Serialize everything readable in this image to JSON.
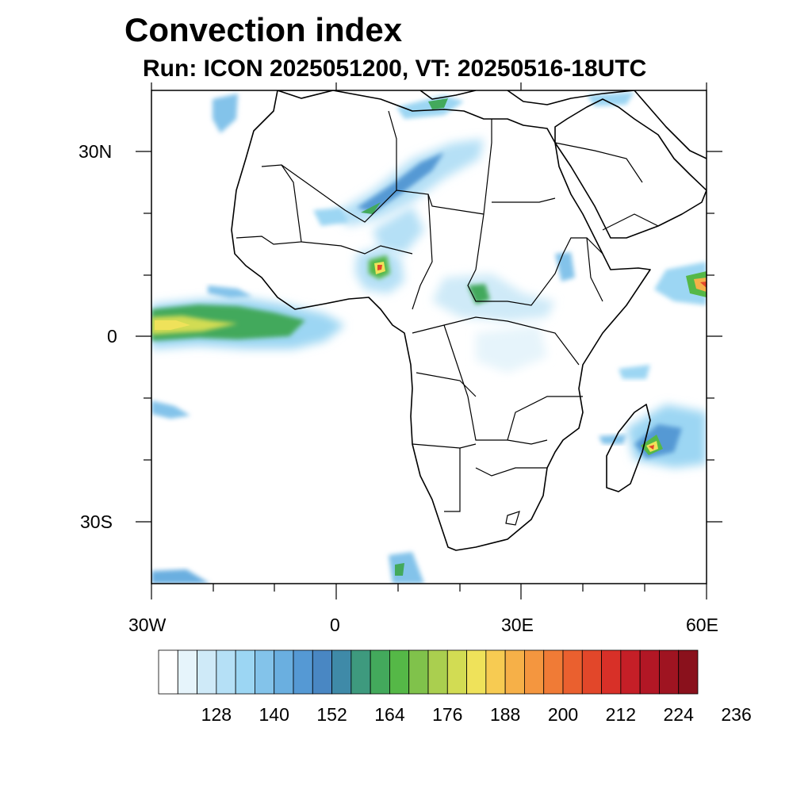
{
  "title": "Convection index",
  "subtitle": "Run: ICON 2025051200,  VT: 20250516-18UTC",
  "map": {
    "lon_range": [
      -30,
      60
    ],
    "lat_range": [
      -40,
      40
    ],
    "lat_tick_labels": [
      "30N",
      "0",
      "30S"
    ],
    "lon_tick_labels": [
      "30W",
      "0",
      "30E",
      "60E"
    ],
    "colors": {
      "land_outline": "#000000",
      "background": "#ffffff"
    },
    "hotspots": [
      {
        "region": "equatorial Atlantic band",
        "peak": "yellow"
      },
      {
        "region": "Nigeria / Cameroon",
        "peak": "red"
      },
      {
        "region": "Madagascar east coast",
        "peak": "red"
      },
      {
        "region": "Arabian Sea near Horn of Africa",
        "peak": "orange"
      },
      {
        "region": "Sahel / southern Sahara streaks",
        "peak": "green"
      }
    ]
  },
  "colorbar": {
    "tick_labels": [
      "128",
      "140",
      "152",
      "164",
      "176",
      "188",
      "200",
      "212",
      "224",
      "236"
    ],
    "colors": [
      "#ffffff",
      "#e6f4fb",
      "#cfeaf8",
      "#b5e0f6",
      "#9cd6f3",
      "#83c3ea",
      "#6aafe0",
      "#5599d4",
      "#4987c3",
      "#3f8aa8",
      "#3e9a7e",
      "#43a95c",
      "#55b847",
      "#80c24b",
      "#aacf4f",
      "#d2dc53",
      "#efe25a",
      "#f7cb52",
      "#f6b048",
      "#f4963f",
      "#f07b36",
      "#ea602f",
      "#e2472a",
      "#d83028",
      "#c51f27",
      "#b21725",
      "#9f1421",
      "#8a111c"
    ]
  }
}
